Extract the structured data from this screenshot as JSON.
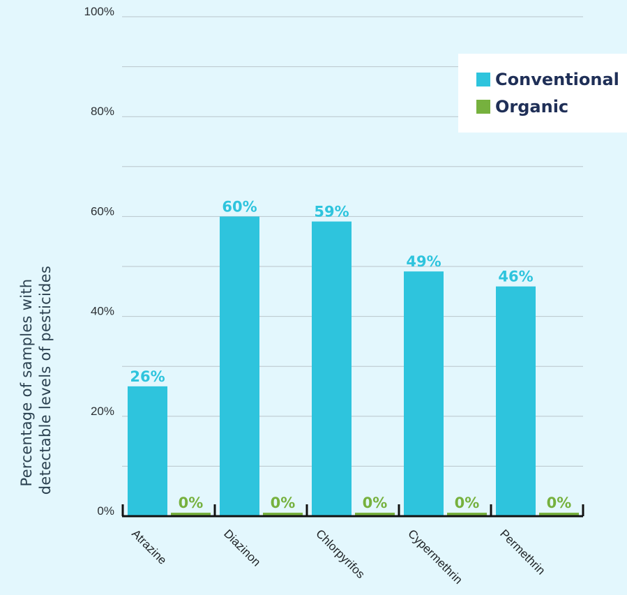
{
  "chart_data": {
    "type": "bar",
    "categories": [
      "Atrazine",
      "Diazinon",
      "Chlorpyrifos",
      "Cypermethrin",
      "Permethrin"
    ],
    "series": [
      {
        "name": "Conventional",
        "values": [
          26,
          60,
          59,
          49,
          46
        ],
        "labels": [
          "26%",
          "60%",
          "59%",
          "49%",
          "46%"
        ],
        "color": "#2ec4dd"
      },
      {
        "name": "Organic",
        "values": [
          0,
          0,
          0,
          0,
          0
        ],
        "labels": [
          "0%",
          "0%",
          "0%",
          "0%",
          "0%"
        ],
        "color": "#76b13e"
      }
    ],
    "title": "",
    "xlabel": "",
    "ylabel": "Percentage of samples with detectable levels of pesticides",
    "ylabel_lines": [
      "Percentage of samples with",
      "detectable levels of pesticides"
    ],
    "ylim": [
      0,
      100
    ],
    "yticks": [
      0,
      20,
      40,
      60,
      80,
      100
    ],
    "ytick_labels": [
      "0%",
      "20%",
      "40%",
      "60%",
      "80%",
      "100%"
    ],
    "grid": true,
    "legend": "top-right",
    "colors": {
      "background": "#e3f7fd",
      "grid": "#b9c6cc",
      "axis": "#111111",
      "legend_bg": "#ffffff",
      "legend_text": "#1f2f57"
    }
  }
}
